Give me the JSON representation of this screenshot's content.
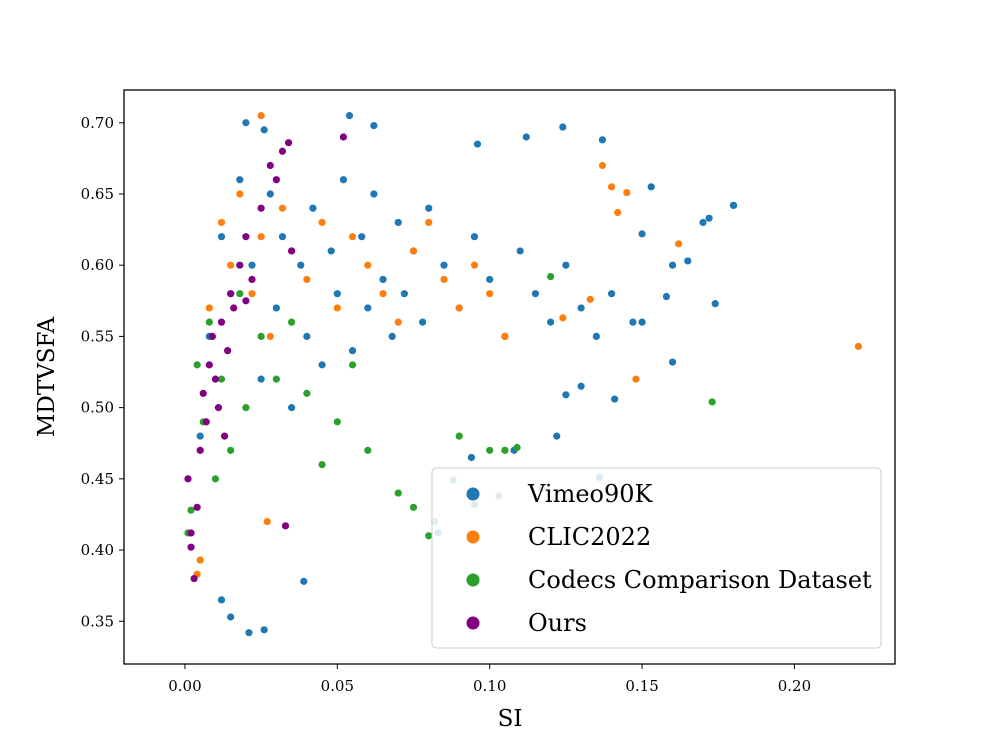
{
  "chart_data": {
    "type": "scatter",
    "title": "",
    "xlabel": "SI",
    "ylabel": "MDTVSFA",
    "xlim": [
      -0.02,
      0.233
    ],
    "ylim": [
      0.32,
      0.723
    ],
    "xticks": [
      0.0,
      0.05,
      0.1,
      0.15,
      0.2
    ],
    "xtick_labels": [
      "0.00",
      "0.05",
      "0.10",
      "0.15",
      "0.20"
    ],
    "yticks": [
      0.35,
      0.4,
      0.45,
      0.5,
      0.55,
      0.6,
      0.65,
      0.7
    ],
    "ytick_labels": [
      "0.35",
      "0.40",
      "0.45",
      "0.50",
      "0.55",
      "0.60",
      "0.65",
      "0.70"
    ],
    "grid": false,
    "legend_position": "lower-right",
    "series": [
      {
        "name": "Vimeo90K",
        "color": "#1f77b4",
        "x": [
          0.005,
          0.008,
          0.012,
          0.015,
          0.018,
          0.022,
          0.025,
          0.028,
          0.03,
          0.032,
          0.035,
          0.038,
          0.04,
          0.042,
          0.045,
          0.048,
          0.05,
          0.052,
          0.055,
          0.058,
          0.06,
          0.062,
          0.065,
          0.068,
          0.07,
          0.072,
          0.075,
          0.078,
          0.08,
          0.085,
          0.09,
          0.095,
          0.1,
          0.105,
          0.11,
          0.115,
          0.12,
          0.125,
          0.13,
          0.135,
          0.14,
          0.15,
          0.16,
          0.17,
          0.18,
          0.02,
          0.026,
          0.054,
          0.062,
          0.124,
          0.137,
          0.112,
          0.096,
          0.153,
          0.165,
          0.172,
          0.18,
          0.15,
          0.147,
          0.158,
          0.136,
          0.122,
          0.16,
          0.174,
          0.012,
          0.015,
          0.021,
          0.026,
          0.039,
          0.088,
          0.095,
          0.103,
          0.117,
          0.141,
          0.125,
          0.13,
          0.108,
          0.094,
          0.083
        ],
        "y": [
          0.48,
          0.55,
          0.62,
          0.58,
          0.66,
          0.6,
          0.52,
          0.65,
          0.57,
          0.62,
          0.5,
          0.6,
          0.55,
          0.64,
          0.53,
          0.61,
          0.58,
          0.66,
          0.54,
          0.62,
          0.57,
          0.65,
          0.59,
          0.55,
          0.63,
          0.58,
          0.61,
          0.56,
          0.64,
          0.6,
          0.57,
          0.62,
          0.59,
          0.55,
          0.61,
          0.58,
          0.56,
          0.6,
          0.57,
          0.55,
          0.58,
          0.56,
          0.6,
          0.63,
          0.642,
          0.7,
          0.695,
          0.705,
          0.698,
          0.697,
          0.688,
          0.69,
          0.685,
          0.655,
          0.603,
          0.633,
          0.642,
          0.622,
          0.56,
          0.578,
          0.451,
          0.48,
          0.532,
          0.573,
          0.365,
          0.353,
          0.342,
          0.344,
          0.378,
          0.449,
          0.432,
          0.438,
          0.443,
          0.506,
          0.509,
          0.515,
          0.47,
          0.465,
          0.412
        ]
      },
      {
        "name": "CLIC2022",
        "color": "#ff7f0e",
        "x": [
          0.008,
          0.012,
          0.015,
          0.018,
          0.022,
          0.025,
          0.028,
          0.032,
          0.035,
          0.04,
          0.045,
          0.05,
          0.055,
          0.06,
          0.065,
          0.07,
          0.075,
          0.08,
          0.085,
          0.09,
          0.095,
          0.1,
          0.105,
          0.124,
          0.133,
          0.137,
          0.14,
          0.142,
          0.145,
          0.148,
          0.162,
          0.221,
          0.025,
          0.027,
          0.005,
          0.004
        ],
        "y": [
          0.57,
          0.63,
          0.6,
          0.65,
          0.58,
          0.62,
          0.55,
          0.64,
          0.61,
          0.59,
          0.63,
          0.57,
          0.62,
          0.6,
          0.58,
          0.56,
          0.61,
          0.63,
          0.59,
          0.57,
          0.6,
          0.58,
          0.55,
          0.563,
          0.576,
          0.67,
          0.655,
          0.637,
          0.651,
          0.52,
          0.615,
          0.543,
          0.705,
          0.42,
          0.393,
          0.383
        ]
      },
      {
        "name": "Codecs Comparison Dataset",
        "color": "#2ca02c",
        "x": [
          0.004,
          0.006,
          0.008,
          0.01,
          0.012,
          0.015,
          0.018,
          0.02,
          0.025,
          0.03,
          0.035,
          0.04,
          0.045,
          0.05,
          0.055,
          0.06,
          0.07,
          0.075,
          0.08,
          0.082,
          0.09,
          0.1,
          0.105,
          0.109,
          0.12,
          0.173,
          0.002,
          0.001
        ],
        "y": [
          0.53,
          0.49,
          0.56,
          0.45,
          0.52,
          0.47,
          0.58,
          0.5,
          0.55,
          0.52,
          0.56,
          0.51,
          0.46,
          0.49,
          0.53,
          0.47,
          0.44,
          0.43,
          0.41,
          0.42,
          0.48,
          0.47,
          0.47,
          0.472,
          0.592,
          0.504,
          0.428,
          0.412
        ]
      },
      {
        "name": "Ours",
        "color": "#800080",
        "x": [
          0.001,
          0.002,
          0.003,
          0.004,
          0.005,
          0.006,
          0.007,
          0.008,
          0.009,
          0.01,
          0.011,
          0.012,
          0.013,
          0.014,
          0.015,
          0.016,
          0.018,
          0.02,
          0.022,
          0.025,
          0.028,
          0.03,
          0.032,
          0.035,
          0.052,
          0.034,
          0.02,
          0.002,
          0.033
        ],
        "y": [
          0.45,
          0.402,
          0.38,
          0.43,
          0.47,
          0.51,
          0.49,
          0.53,
          0.55,
          0.52,
          0.5,
          0.56,
          0.48,
          0.54,
          0.58,
          0.57,
          0.6,
          0.62,
          0.59,
          0.64,
          0.67,
          0.66,
          0.68,
          0.61,
          0.69,
          0.686,
          0.575,
          0.412,
          0.417
        ]
      }
    ]
  }
}
